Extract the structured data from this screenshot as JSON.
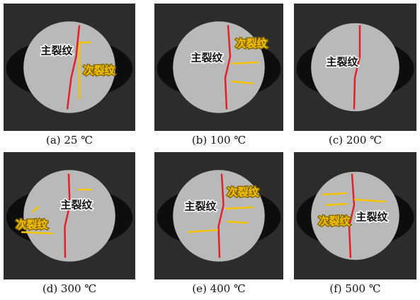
{
  "panels": [
    {
      "caption": "(a) 25 ℃",
      "labels": [
        {
          "text": "主裂纹",
          "color": "#111111"
        },
        {
          "text": "次裂纹",
          "color": "#f5c400"
        }
      ]
    },
    {
      "caption": "(b) 100 ℃",
      "labels": [
        {
          "text": "次裂纹",
          "color": "#f5c400"
        },
        {
          "text": "主裂纹",
          "color": "#111111"
        }
      ]
    },
    {
      "caption": "(c) 200 ℃",
      "labels": [
        {
          "text": "主裂纹",
          "color": "#111111"
        }
      ]
    },
    {
      "caption": "(d) 300 ℃",
      "labels": [
        {
          "text": "主裂纹",
          "color": "#111111"
        },
        {
          "text": "次裂纹",
          "color": "#f5c400"
        }
      ]
    },
    {
      "caption": "(e) 400 ℃",
      "labels": [
        {
          "text": "次裂纹",
          "color": "#f5c400"
        },
        {
          "text": "主裂纹",
          "color": "#111111"
        }
      ]
    },
    {
      "caption": "(f) 500 ℃",
      "labels": [
        {
          "text": "次裂纹",
          "color": "#f5c400"
        },
        {
          "text": "主裂纹",
          "color": "#111111"
        }
      ]
    }
  ]
}
